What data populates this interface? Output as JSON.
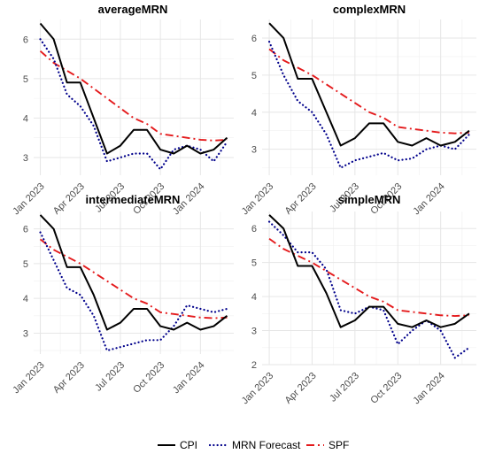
{
  "legend": {
    "placement": "bottom",
    "items": [
      {
        "key": "cpi",
        "label": "CPI",
        "color": "#000000",
        "style": "solid"
      },
      {
        "key": "mrn",
        "label": "MRN Forecast",
        "color": "#00008b",
        "style": "dotted"
      },
      {
        "key": "spf",
        "label": "SPF",
        "color": "#e41a1c",
        "style": "dashdot"
      }
    ]
  },
  "chart_data": [
    {
      "type": "line",
      "title": "averageMRN",
      "x": [
        "2023-01",
        "2023-02",
        "2023-03",
        "2023-04",
        "2023-05",
        "2023-06",
        "2023-07",
        "2023-08",
        "2023-09",
        "2023-10",
        "2023-11",
        "2023-12",
        "2024-01",
        "2024-02",
        "2024-03"
      ],
      "x_ticks": [
        "Jan 2023",
        "Apr 2023",
        "Jul 2023",
        "Oct 2023",
        "Jan 2024"
      ],
      "y_ticks": [
        3,
        4,
        5,
        6
      ],
      "ylim": [
        2.55,
        6.5
      ],
      "grid": true,
      "series": [
        {
          "name": "CPI",
          "values": [
            6.4,
            6.0,
            4.9,
            4.9,
            4.0,
            3.1,
            3.3,
            3.7,
            3.7,
            3.2,
            3.1,
            3.3,
            3.1,
            3.2,
            3.5
          ]
        },
        {
          "name": "MRN Forecast",
          "values": [
            6.0,
            5.5,
            4.6,
            4.3,
            3.8,
            2.9,
            3.0,
            3.1,
            3.1,
            2.7,
            3.2,
            3.3,
            3.2,
            2.9,
            3.4
          ]
        },
        {
          "name": "SPF",
          "values": [
            5.7,
            5.4,
            5.2,
            5.0,
            4.75,
            4.5,
            4.25,
            4.0,
            3.85,
            3.6,
            3.55,
            3.5,
            3.45,
            3.43,
            3.45
          ]
        }
      ]
    },
    {
      "type": "line",
      "title": "complexMRN",
      "x": [
        "2023-01",
        "2023-02",
        "2023-03",
        "2023-04",
        "2023-05",
        "2023-06",
        "2023-07",
        "2023-08",
        "2023-09",
        "2023-10",
        "2023-11",
        "2023-12",
        "2024-01",
        "2024-02",
        "2024-03"
      ],
      "x_ticks": [
        "Jan 2023",
        "Apr 2023",
        "Jul 2023",
        "Oct 2023",
        "Jan 2024"
      ],
      "y_ticks": [
        3,
        4,
        5,
        6
      ],
      "ylim": [
        2.3,
        6.5
      ],
      "grid": true,
      "series": [
        {
          "name": "CPI",
          "values": [
            6.4,
            6.0,
            4.9,
            4.9,
            4.0,
            3.1,
            3.3,
            3.7,
            3.7,
            3.2,
            3.1,
            3.3,
            3.1,
            3.2,
            3.5
          ]
        },
        {
          "name": "MRN Forecast",
          "values": [
            5.9,
            5.0,
            4.3,
            4.0,
            3.4,
            2.5,
            2.7,
            2.8,
            2.9,
            2.7,
            2.75,
            3.0,
            3.1,
            3.0,
            3.4
          ]
        },
        {
          "name": "SPF",
          "values": [
            5.7,
            5.4,
            5.2,
            5.0,
            4.75,
            4.5,
            4.25,
            4.0,
            3.85,
            3.6,
            3.55,
            3.5,
            3.45,
            3.43,
            3.45
          ]
        }
      ]
    },
    {
      "type": "line",
      "title": "intermediateMRN",
      "x": [
        "2023-01",
        "2023-02",
        "2023-03",
        "2023-04",
        "2023-05",
        "2023-06",
        "2023-07",
        "2023-08",
        "2023-09",
        "2023-10",
        "2023-11",
        "2023-12",
        "2024-01",
        "2024-02",
        "2024-03"
      ],
      "x_ticks": [
        "Jan 2023",
        "Apr 2023",
        "Jul 2023",
        "Oct 2023",
        "Jan 2024"
      ],
      "y_ticks": [
        3,
        4,
        5,
        6
      ],
      "ylim": [
        2.4,
        6.5
      ],
      "grid": true,
      "series": [
        {
          "name": "CPI",
          "values": [
            6.4,
            6.0,
            4.9,
            4.9,
            4.1,
            3.1,
            3.3,
            3.7,
            3.7,
            3.2,
            3.1,
            3.3,
            3.1,
            3.2,
            3.5
          ]
        },
        {
          "name": "MRN Forecast",
          "values": [
            5.9,
            5.1,
            4.3,
            4.1,
            3.5,
            2.5,
            2.6,
            2.7,
            2.8,
            2.8,
            3.2,
            3.8,
            3.7,
            3.6,
            3.7
          ]
        },
        {
          "name": "SPF",
          "values": [
            5.7,
            5.4,
            5.2,
            5.0,
            4.75,
            4.5,
            4.25,
            4.0,
            3.85,
            3.6,
            3.55,
            3.5,
            3.45,
            3.43,
            3.45
          ]
        }
      ]
    },
    {
      "type": "line",
      "title": "simpleMRN",
      "x": [
        "2023-01",
        "2023-02",
        "2023-03",
        "2023-04",
        "2023-05",
        "2023-06",
        "2023-07",
        "2023-08",
        "2023-09",
        "2023-10",
        "2023-11",
        "2023-12",
        "2024-01",
        "2024-02",
        "2024-03"
      ],
      "x_ticks": [
        "Jan 2023",
        "Apr 2023",
        "Jul 2023",
        "Oct 2023",
        "Jan 2024"
      ],
      "y_ticks": [
        2,
        3,
        4,
        5,
        6
      ],
      "ylim": [
        2.0,
        6.5
      ],
      "grid": true,
      "series": [
        {
          "name": "CPI",
          "values": [
            6.4,
            6.0,
            4.9,
            4.9,
            4.1,
            3.1,
            3.3,
            3.7,
            3.7,
            3.2,
            3.1,
            3.3,
            3.1,
            3.2,
            3.5
          ]
        },
        {
          "name": "MRN Forecast",
          "values": [
            6.2,
            5.8,
            5.3,
            5.3,
            4.8,
            3.6,
            3.5,
            3.7,
            3.6,
            2.6,
            3.0,
            3.3,
            3.0,
            2.2,
            2.5
          ]
        },
        {
          "name": "SPF",
          "values": [
            5.7,
            5.4,
            5.2,
            5.0,
            4.75,
            4.5,
            4.25,
            4.0,
            3.85,
            3.6,
            3.55,
            3.5,
            3.45,
            3.43,
            3.45
          ]
        }
      ]
    }
  ]
}
